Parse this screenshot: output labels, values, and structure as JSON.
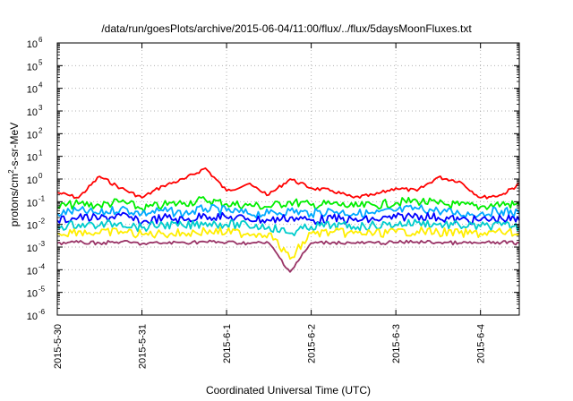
{
  "chart_data": {
    "type": "line",
    "title": "/data/run/goesPlots/archive/2015-06-04/11:00/flux/../flux/5daysMoonFluxes.txt",
    "xlabel": "Coordinated Universal Time (UTC)",
    "ylabel": "protons/cm2-s-sr-MeV",
    "ylabel_parts": {
      "pre": "protons/cm",
      "sup": "2",
      "post": "-s-sr-MeV"
    },
    "y_scale": "log",
    "ylim": [
      1e-06,
      1000000.0
    ],
    "y_ticks": [
      {
        "base": "10",
        "exp": "-6"
      },
      {
        "base": "10",
        "exp": "-5"
      },
      {
        "base": "10",
        "exp": "-4"
      },
      {
        "base": "10",
        "exp": "-3"
      },
      {
        "base": "10",
        "exp": "-2"
      },
      {
        "base": "10",
        "exp": "-1"
      },
      {
        "base": "10",
        "exp": "0"
      },
      {
        "base": "10",
        "exp": "1"
      },
      {
        "base": "10",
        "exp": "2"
      },
      {
        "base": "10",
        "exp": "3"
      },
      {
        "base": "10",
        "exp": "4"
      },
      {
        "base": "10",
        "exp": "5"
      },
      {
        "base": "10",
        "exp": "6"
      }
    ],
    "xlim": [
      "2015-05-30 00:00",
      "2015-06-04 11:00"
    ],
    "x_ticks": [
      "2015-5-30",
      "2015-5-31",
      "2015-6-1",
      "2015-6-2",
      "2015-6-3",
      "2015-6-4"
    ],
    "grid": true,
    "legend": "none",
    "x": [
      "2015-05-30 00:00",
      "2015-05-30 06:00",
      "2015-05-30 12:00",
      "2015-05-30 18:00",
      "2015-05-31 00:00",
      "2015-05-31 06:00",
      "2015-05-31 12:00",
      "2015-05-31 18:00",
      "2015-06-01 00:00",
      "2015-06-01 06:00",
      "2015-06-01 12:00",
      "2015-06-01 18:00",
      "2015-06-02 00:00",
      "2015-06-02 06:00",
      "2015-06-02 12:00",
      "2015-06-02 18:00",
      "2015-06-03 00:00",
      "2015-06-03 06:00",
      "2015-06-03 12:00",
      "2015-06-03 18:00",
      "2015-06-04 00:00",
      "2015-06-04 06:00",
      "2015-06-04 11:00"
    ],
    "series": [
      {
        "color": "#ff0000",
        "values": [
          0.25,
          0.15,
          1.3,
          0.4,
          0.15,
          0.5,
          1.0,
          3.0,
          0.3,
          0.6,
          0.2,
          1.0,
          0.4,
          0.3,
          0.15,
          0.2,
          0.4,
          0.3,
          1.2,
          0.8,
          0.15,
          0.2,
          0.6
        ]
      },
      {
        "color": "#00ee00",
        "values": [
          0.06,
          0.08,
          0.07,
          0.1,
          0.05,
          0.07,
          0.09,
          0.12,
          0.08,
          0.07,
          0.06,
          0.1,
          0.07,
          0.08,
          0.06,
          0.07,
          0.09,
          0.11,
          0.08,
          0.07,
          0.06,
          0.08,
          0.07
        ]
      },
      {
        "color": "#00aaff",
        "values": [
          0.03,
          0.04,
          0.03,
          0.05,
          0.03,
          0.04,
          0.03,
          0.05,
          0.04,
          0.03,
          0.03,
          0.04,
          0.03,
          0.04,
          0.03,
          0.03,
          0.04,
          0.05,
          0.04,
          0.03,
          0.03,
          0.04,
          0.03
        ]
      },
      {
        "color": "#0000ff",
        "values": [
          0.015,
          0.02,
          0.018,
          0.025,
          0.012,
          0.02,
          0.015,
          0.025,
          0.02,
          0.018,
          0.015,
          0.02,
          0.015,
          0.018,
          0.015,
          0.016,
          0.02,
          0.025,
          0.02,
          0.016,
          0.015,
          0.018,
          0.015
        ]
      },
      {
        "color": "#00cccc",
        "values": [
          0.008,
          0.01,
          0.009,
          0.012,
          0.007,
          0.01,
          0.008,
          0.012,
          0.01,
          0.009,
          0.008,
          0.004,
          0.008,
          0.009,
          0.008,
          0.009,
          0.01,
          0.012,
          0.01,
          0.009,
          0.008,
          0.009,
          0.008
        ]
      },
      {
        "color": "#ffee00",
        "values": [
          0.004,
          0.005,
          0.004,
          0.005,
          0.0035,
          0.004,
          0.004,
          0.005,
          0.0045,
          0.004,
          0.004,
          0.0003,
          0.004,
          0.0045,
          0.004,
          0.004,
          0.0045,
          0.005,
          0.0045,
          0.004,
          0.004,
          0.0045,
          0.004
        ]
      },
      {
        "color": "#993366",
        "values": [
          0.0015,
          0.0016,
          0.0015,
          0.0017,
          0.0014,
          0.0015,
          0.0016,
          0.0017,
          0.0016,
          0.0015,
          0.0015,
          8e-05,
          0.0015,
          0.0016,
          0.0015,
          0.0015,
          0.0016,
          0.0017,
          0.0016,
          0.0015,
          0.0015,
          0.0016,
          0.0015
        ]
      }
    ]
  }
}
